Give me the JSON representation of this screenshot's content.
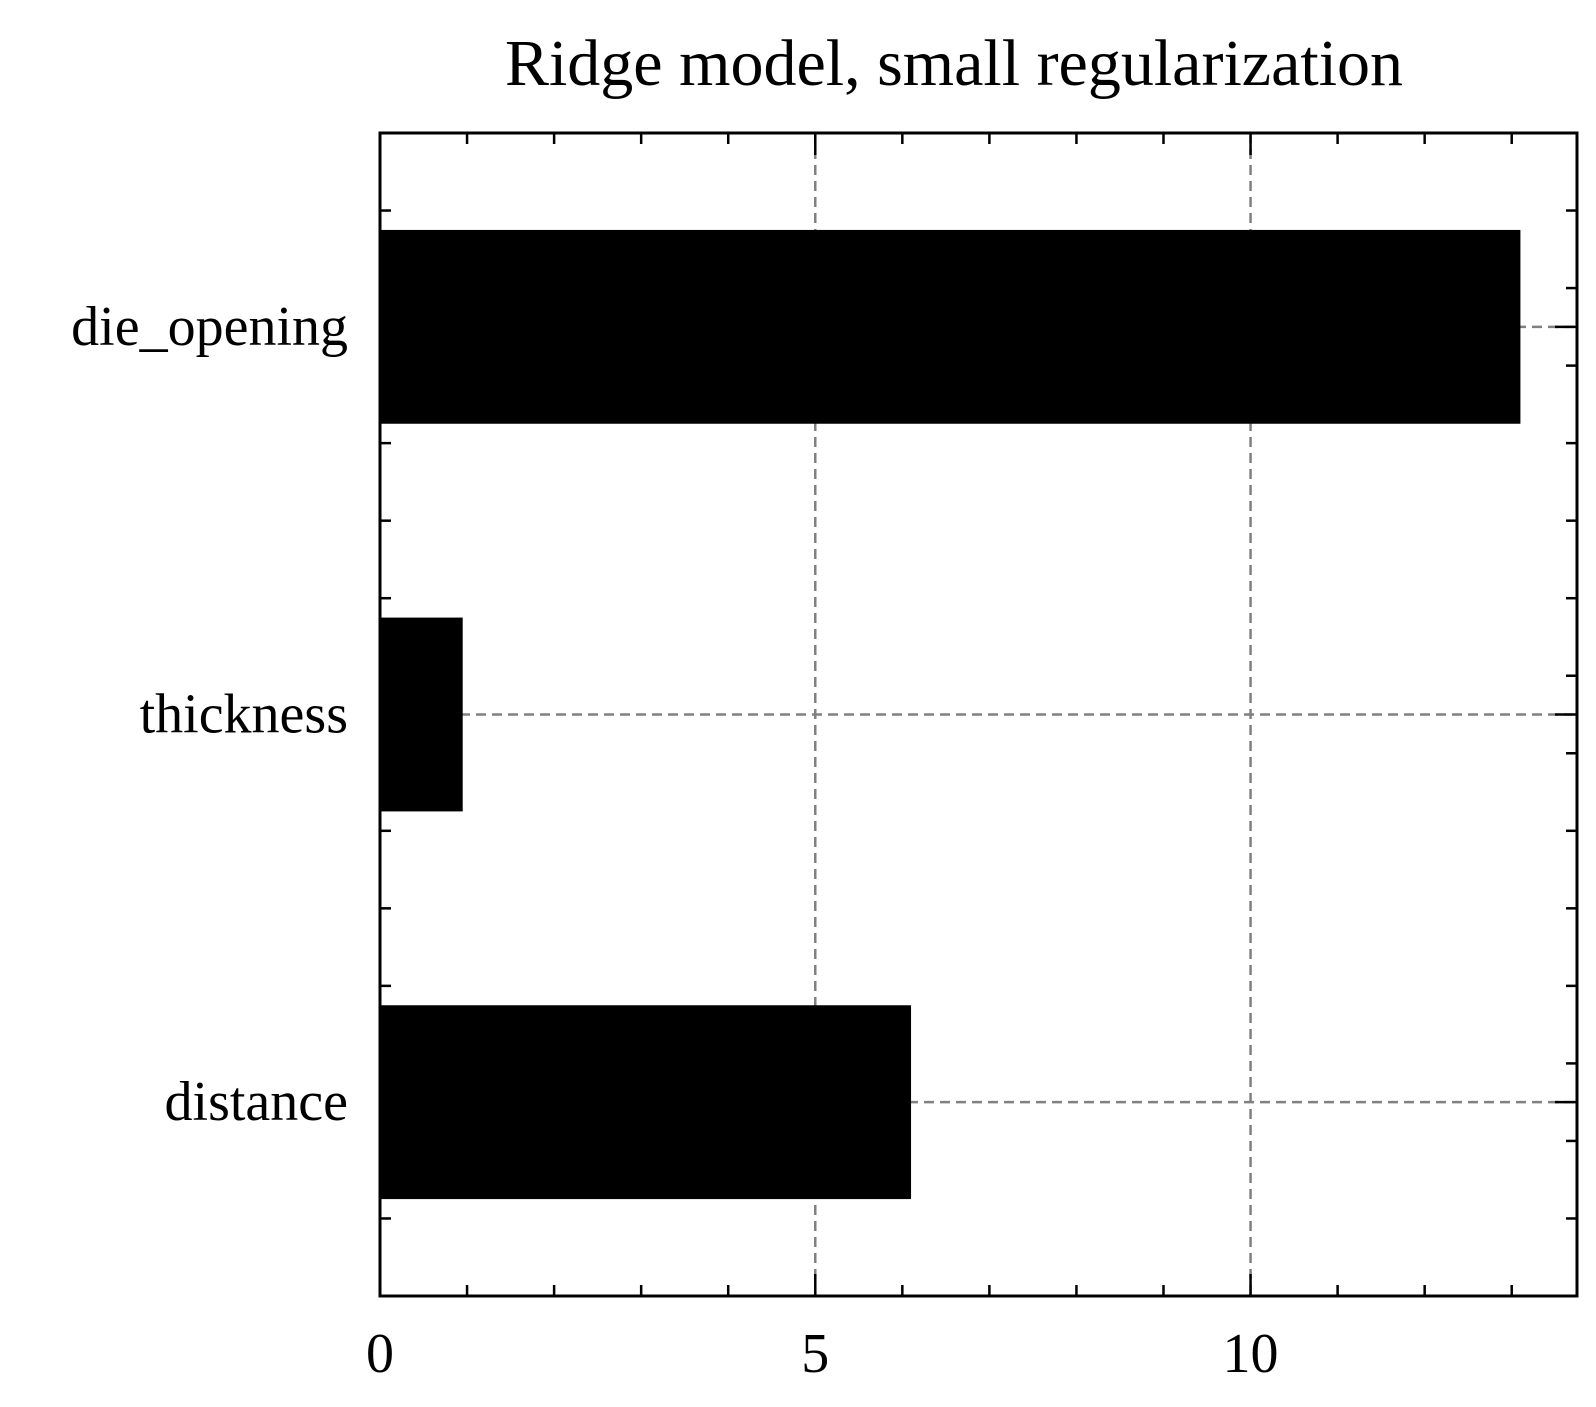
{
  "chart_data": {
    "type": "bar",
    "orientation": "horizontal",
    "title": "Ridge model, small regularization",
    "xlabel": "",
    "ylabel": "",
    "categories": [
      "die_opening",
      "thickness",
      "distance"
    ],
    "values": [
      13.1,
      0.95,
      6.1
    ],
    "xlim": [
      0,
      13.75
    ],
    "xticks": [
      0,
      5,
      10
    ],
    "xtick_labels": [
      "0",
      "5",
      "10"
    ],
    "x_minor_step": 1,
    "y_minor_step": 0.2,
    "grid": true,
    "grid_style": "dashed",
    "legend": "none",
    "colors": {
      "bar": "#000000",
      "grid": "#808080",
      "axis": "#000000"
    }
  }
}
